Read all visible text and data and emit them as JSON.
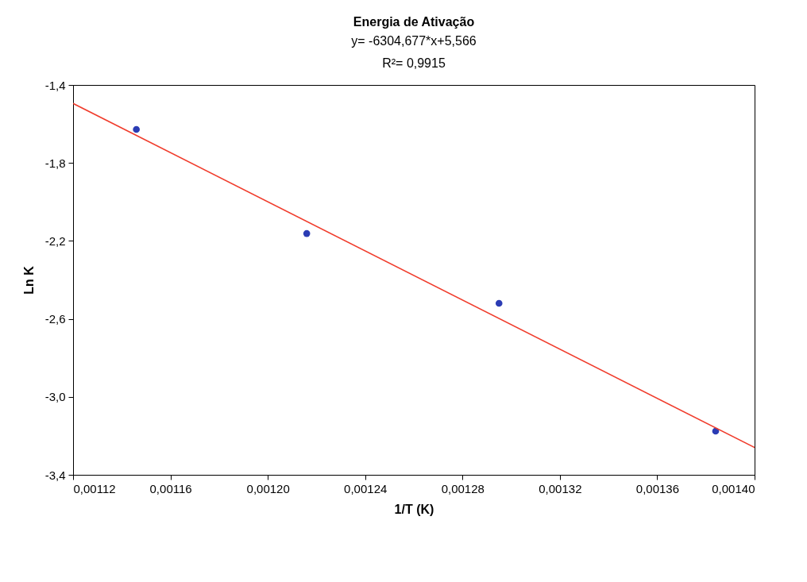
{
  "chart_data": {
    "type": "scatter",
    "title": "Energia de Ativação",
    "subtitle": "y= -6304,677*x+5,566\nR²= 0,9915",
    "xlabel": "1/T (K)",
    "ylabel": "Ln K",
    "series": [
      {
        "color": "#2b3cb4",
        "x": [
          0.001146,
          0.001216,
          0.001295,
          0.001384
        ],
        "values": [
          -1.628,
          -2.162,
          -2.52,
          -3.176
        ]
      },
      {
        "type": "line",
        "marker": "none",
        "color": "#f03c2c",
        "x": [
          0.00112,
          0.0014
        ],
        "values": [
          -1.495,
          -3.26
        ]
      }
    ],
    "xlim": [
      0.00112,
      0.0014
    ],
    "ylim": [
      -3.4,
      -1.4
    ],
    "xticks": [
      {
        "value": 0.00112,
        "label": "0,00112"
      },
      {
        "value": 0.00116,
        "label": "0,00116"
      },
      {
        "value": 0.0012,
        "label": "0,00120"
      },
      {
        "value": 0.00124,
        "label": "0,00124"
      },
      {
        "value": 0.00128,
        "label": "0,00128"
      },
      {
        "value": 0.00132,
        "label": "0,00132"
      },
      {
        "value": 0.00136,
        "label": "0,00136"
      },
      {
        "value": 0.0014,
        "label": "0,00140"
      }
    ],
    "yticks": [
      {
        "value": -3.4,
        "label": "-3,4"
      },
      {
        "value": -3.0,
        "label": "-3,0"
      },
      {
        "value": -2.6,
        "label": "-2,6"
      },
      {
        "value": -2.2,
        "label": "-2,2"
      },
      {
        "value": -1.8,
        "label": "-1,8"
      },
      {
        "value": -1.4,
        "label": "-1,4"
      }
    ],
    "marker": "circle",
    "grid": false
  }
}
